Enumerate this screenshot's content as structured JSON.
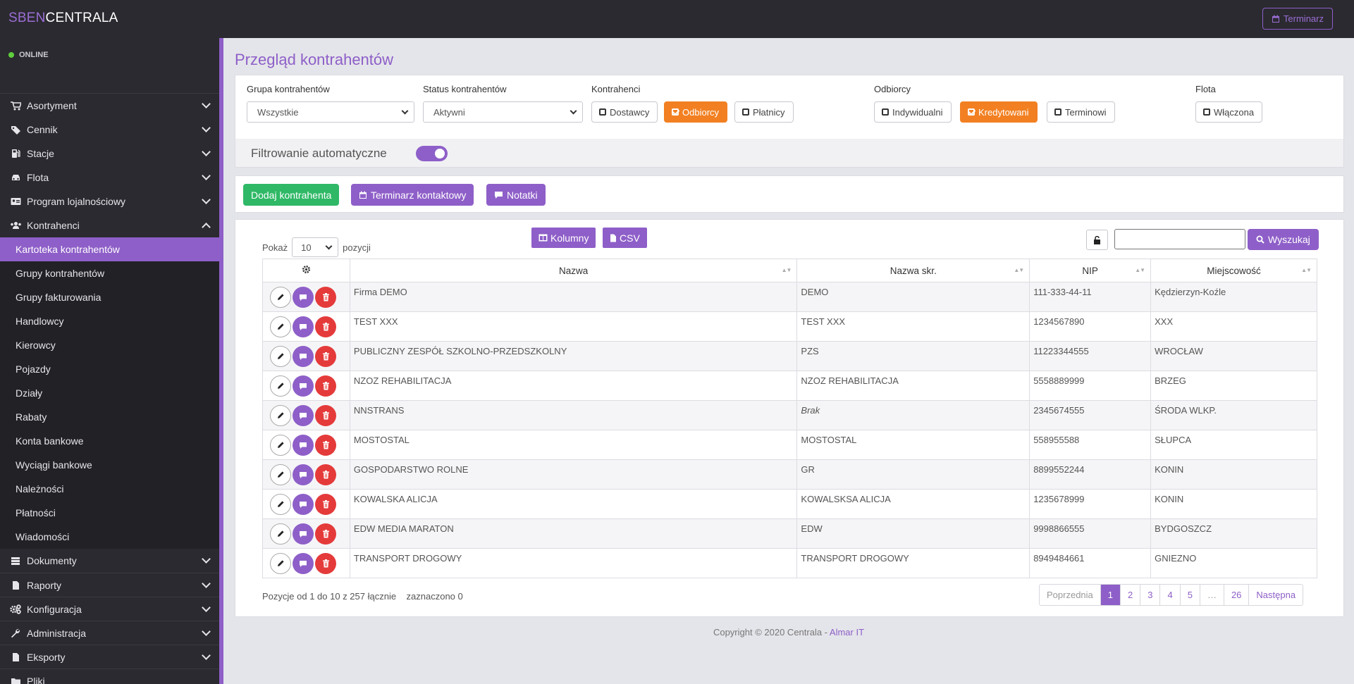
{
  "brand": {
    "part1": "SBEN",
    "part2": "CENTRALA"
  },
  "topbar": {
    "terminarz_label": "Terminarz"
  },
  "status": "ONLINE",
  "sidebar": {
    "items": [
      {
        "label": "Asortyment",
        "icon": "cart-icon"
      },
      {
        "label": "Cennik",
        "icon": "tags-icon"
      },
      {
        "label": "Stacje",
        "icon": "gas-pump-icon"
      },
      {
        "label": "Flota",
        "icon": "car-icon"
      },
      {
        "label": "Program lojalnościowy",
        "icon": "id-card-icon"
      },
      {
        "label": "Kontrahenci",
        "icon": "users-icon"
      }
    ],
    "subitems": [
      "Kartoteka kontrahentów",
      "Grupy kontrahentów",
      "Grupy fakturowania",
      "Handlowcy",
      "Kierowcy",
      "Pojazdy",
      "Działy",
      "Rabaty",
      "Konta bankowe",
      "Wyciągi bankowe",
      "Należności",
      "Płatności",
      "Wiadomości"
    ],
    "items_after": [
      {
        "label": "Dokumenty",
        "icon": "layers-icon"
      },
      {
        "label": "Raporty",
        "icon": "file-icon"
      },
      {
        "label": "Konfiguracja",
        "icon": "cogs-icon"
      },
      {
        "label": "Administracja",
        "icon": "wrench-icon"
      },
      {
        "label": "Eksporty",
        "icon": "file-icon"
      },
      {
        "label": "Pliki",
        "icon": "folder-icon"
      }
    ]
  },
  "page": {
    "title": "Przegląd kontrahentów"
  },
  "filters": {
    "grupa_label": "Grupa kontrahentów",
    "grupa_value": "Wszystkie",
    "status_label": "Status kontrahentów",
    "status_value": "Aktywni",
    "kontrahenci_label": "Kontrahenci",
    "kontrahenci_chips": [
      "Dostawcy",
      "Odbiorcy",
      "Płatnicy"
    ],
    "odbiorcy_label": "Odbiorcy",
    "odbiorcy_chips": [
      "Indywidualni",
      "Kredytowani",
      "Terminowi"
    ],
    "flota_label": "Flota",
    "flota_chip": "Włączona",
    "auto_label": "Filtrowanie automatyczne",
    "accent": "#f28022"
  },
  "actions": {
    "add": "Dodaj kontrahenta",
    "calendar": "Terminarz kontaktowy",
    "notes": "Notatki"
  },
  "table": {
    "show_label": "Pokaż",
    "page_size": "10",
    "positions_label": "pozycji",
    "columns_btn": "Kolumny",
    "csv_btn": "CSV",
    "search_btn": "Wyszukaj",
    "headers": [
      "Nazwa",
      "Nazwa skr.",
      "NIP",
      "Miejscowość"
    ],
    "rows": [
      [
        "Firma DEMO",
        "DEMO",
        "111-333-44-11",
        "Kędzierzyn-Koźle"
      ],
      [
        "TEST XXX",
        "TEST XXX",
        "1234567890",
        "XXX"
      ],
      [
        "PUBLICZNY ZESPÓŁ SZKOLNO-PRZEDSZKOLNY",
        "PZS",
        "11223344555",
        "WROCŁAW"
      ],
      [
        "NZOZ REHABILITACJA",
        "NZOZ REHABILITACJA",
        "5558889999",
        "BRZEG"
      ],
      [
        "NNSTRANS",
        "Brak",
        "2345674555",
        "ŚRODA WLKP."
      ],
      [
        "MOSTOSTAL",
        "MOSTOSTAL",
        "558955588",
        "SŁUPCA"
      ],
      [
        "GOSPODARSTWO ROLNE",
        "GR",
        "8899552244",
        "KONIN"
      ],
      [
        "KOWALSKA ALICJA",
        "KOWALSKSA ALICJA",
        "1235678999",
        "KONIN"
      ],
      [
        "EDW MEDIA MARATON",
        "EDW",
        "9998866555",
        "BYDGOSZCZ"
      ],
      [
        "TRANSPORT DROGOWY",
        "TRANSPORT DROGOWY",
        "8949484661",
        "GNIEZNO"
      ]
    ],
    "info": "Pozycje od 1 do 10 z 257 łącznie",
    "selected": "zaznaczono 0",
    "pagination": [
      "Poprzednia",
      "1",
      "2",
      "3",
      "4",
      "5",
      "…",
      "26",
      "Następna"
    ]
  },
  "footer": {
    "text": "Copyright © 2020 Centrala - ",
    "link": "Almar IT"
  },
  "colors": {
    "primary": "#8e5fc8",
    "success": "#2fb866",
    "danger": "#e53a3a",
    "dark": "#2b2a30"
  }
}
